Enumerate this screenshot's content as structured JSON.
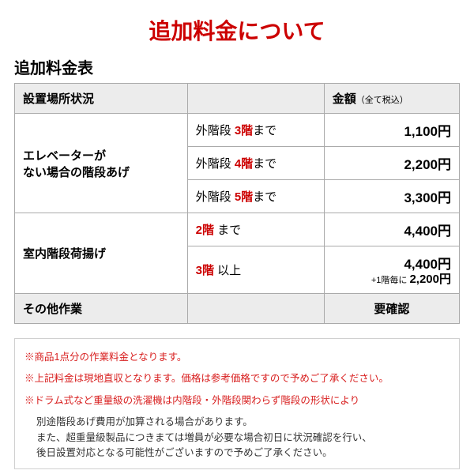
{
  "colors": {
    "accent_red": "#cc0000",
    "note_red": "#d81e1e",
    "header_bg": "#ececec",
    "border": "#aaaaaa",
    "note_border": "#d0d0d0"
  },
  "title": "追加料金について",
  "subtitle": "追加料金表",
  "headers": {
    "col1": "設置場所状況",
    "col2": "",
    "col3": "金額",
    "col3_sub": "（全て税込）"
  },
  "group1": {
    "label": "エレベーターが\nない場合の階段あげ",
    "rows": [
      {
        "pre": "外階段 ",
        "red": "3階",
        "suf": "まで",
        "amount": "1,100円"
      },
      {
        "pre": "外階段 ",
        "red": "4階",
        "suf": "まで",
        "amount": "2,200円"
      },
      {
        "pre": "外階段 ",
        "red": "5階",
        "suf": "まで",
        "amount": "3,300円"
      }
    ]
  },
  "group2": {
    "label": "室内階段荷揚げ",
    "rows": [
      {
        "pre": "",
        "red": "2階",
        "suf": " まで",
        "amount": "4,400円"
      },
      {
        "pre": "",
        "red": "3階",
        "suf": " 以上",
        "amount": "4,400円",
        "extra_pre": "+1階毎に ",
        "extra_amt": "2,200円"
      }
    ]
  },
  "group3": {
    "label": "その他作業",
    "value": "要確認"
  },
  "notes": {
    "n1": "※商品1点分の作業料金となります。",
    "n2": "※上記料金は現地直収となります。価格は参考価格ですので予めご了承ください。",
    "n3": "※ドラム式など重量級の洗濯機は内階段・外階段関わらず階段の形状により",
    "n3b": "別途階段あげ費用が加算される場合があります。",
    "n3c": "また、超重量級製品につきまては増員が必要な場合初日に状況確認を行い、",
    "n3d": "後日設置対応となる可能性がございますので予めご了承ください。"
  }
}
